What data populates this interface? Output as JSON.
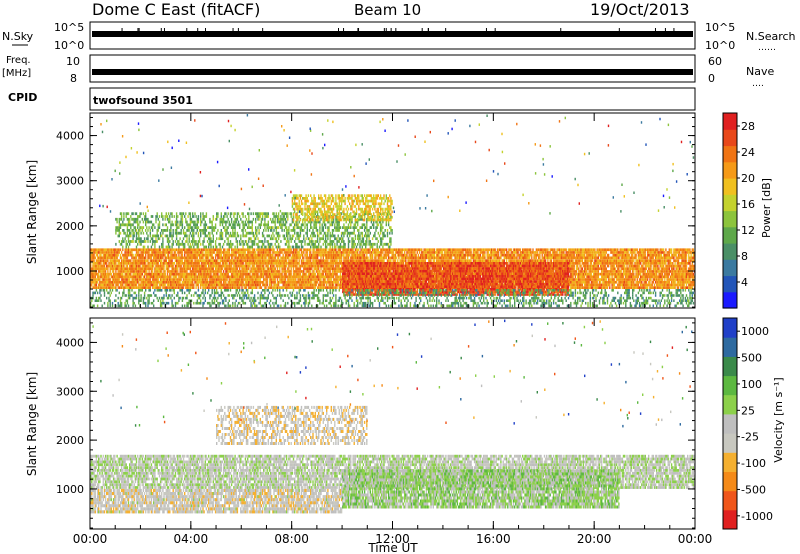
{
  "header": {
    "station": "Dome C East (fitACF)",
    "beam": "Beam 10",
    "date": "19/Oct/2013"
  },
  "strips": {
    "nsky_label": "N.Sky",
    "nsearch_label": "N.Search",
    "nsearch_marker": "……",
    "freq_label_top": "Freq.",
    "freq_label_unit": "[MHz]",
    "nave_label": "Nave",
    "nave_marker": "….",
    "cpid_label": "CPID",
    "cpid_value": "twofsound 3501",
    "nsky_ticks": [
      "10^5",
      "10^0"
    ],
    "nsearch_ticks": [
      "10^5",
      "10^0"
    ],
    "freq_ticks": [
      "10",
      "8"
    ],
    "nave_ticks": [
      "60",
      "0"
    ]
  },
  "chart_data": [
    {
      "type": "heatmap",
      "panel": "power",
      "ylabel": "Slant Range [km]",
      "xlabel": "Time UT",
      "x_range_hours": [
        0,
        24
      ],
      "ylim": [
        180,
        4500
      ],
      "yticks": [
        1000,
        2000,
        3000,
        4000
      ],
      "colorbar": {
        "label": "Power [dB]",
        "ticks": [
          4,
          8,
          12,
          16,
          20,
          24,
          28
        ],
        "range": [
          0,
          30
        ],
        "colors": [
          "#1a1aff",
          "#2255b8",
          "#3b7aa0",
          "#4a8f66",
          "#5ea84a",
          "#8cc43c",
          "#c4d22e",
          "#f0c020",
          "#f59a18",
          "#f07414",
          "#e8481a",
          "#e02020"
        ]
      },
      "bands": [
        {
          "t0": 0,
          "t1": 24,
          "r0": 600,
          "r1": 1500,
          "value": 22,
          "density": 0.9
        },
        {
          "t0": 1,
          "t1": 12,
          "r0": 1500,
          "r1": 2300,
          "value": 12,
          "density": 0.5
        },
        {
          "t0": 8,
          "t1": 12,
          "r0": 2100,
          "r1": 2700,
          "value": 18,
          "density": 0.6
        },
        {
          "t0": 10,
          "t1": 19,
          "r0": 450,
          "r1": 1200,
          "value": 26,
          "density": 0.9
        },
        {
          "t0": 0,
          "t1": 24,
          "r0": 200,
          "r1": 600,
          "value": 10,
          "density": 0.4
        }
      ]
    },
    {
      "type": "heatmap",
      "panel": "velocity",
      "ylabel": "Slant Range [km]",
      "xlabel": "Time UT",
      "x_range_hours": [
        0,
        24
      ],
      "ylim": [
        180,
        4500
      ],
      "yticks": [
        1000,
        2000,
        3000,
        4000
      ],
      "colorbar": {
        "label": "Velocity [m s⁻¹]",
        "ticks": [
          1000,
          500,
          100,
          25,
          -25,
          -100,
          -500,
          -1000
        ],
        "range": [
          -1200,
          1200
        ],
        "colors": [
          "#e02020",
          "#f0561a",
          "#f58a18",
          "#f5b030",
          "#c8c8c0",
          "#bfbfbf",
          "#8cd04a",
          "#5cb840",
          "#3a8a4a",
          "#2e6aa0",
          "#2040c8"
        ]
      },
      "bands": [
        {
          "t0": 0,
          "t1": 24,
          "r0": 1000,
          "r1": 1700,
          "value": 0,
          "density": 0.8
        },
        {
          "t0": 0,
          "t1": 10,
          "r0": 500,
          "r1": 1000,
          "value": -150,
          "density": 0.8
        },
        {
          "t0": 10,
          "t1": 21,
          "r0": 600,
          "r1": 1400,
          "value": 150,
          "density": 0.85
        },
        {
          "t0": 5,
          "t1": 11,
          "r0": 1900,
          "r1": 2700,
          "value": -200,
          "density": 0.5
        }
      ]
    }
  ],
  "x_axis": {
    "ticks": [
      "00:00",
      "04:00",
      "08:00",
      "12:00",
      "16:00",
      "20:00",
      "00:00"
    ],
    "label": "Time UT"
  }
}
